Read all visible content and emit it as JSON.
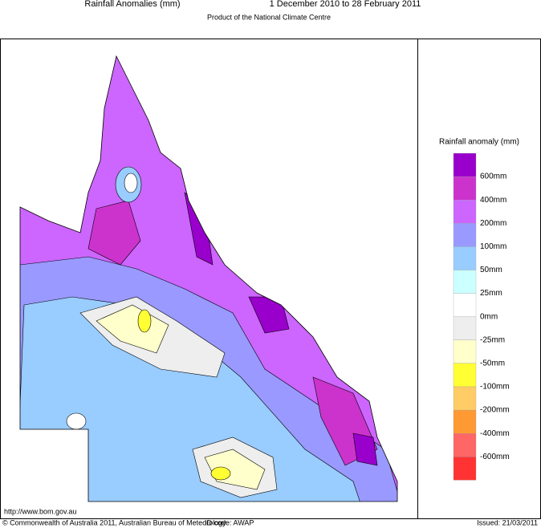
{
  "header": {
    "title": "Rainfall Anomalies (mm)",
    "period": "1 December 2010 to 28 February 2011",
    "subtitle": "Product of the National Climate Centre"
  },
  "legend": {
    "title": "Rainfall anomaly (mm)",
    "colors": [
      "#9900cc",
      "#cc33cc",
      "#cc66ff",
      "#9999ff",
      "#99ccff",
      "#ccffff",
      "#ffffff",
      "#eeeeee",
      "#ffffcc",
      "#ffff33",
      "#ffcc66",
      "#ff9933",
      "#ff6666",
      "#ff3333"
    ],
    "labels": [
      "600mm",
      "400mm",
      "200mm",
      "100mm",
      "50mm",
      "25mm",
      "0mm",
      "-25mm",
      "-50mm",
      "-100mm",
      "-200mm",
      "-400mm",
      "-600mm"
    ]
  },
  "footer": {
    "url": "http://www.bom.gov.au",
    "copyright": "© Commonwealth of Australia 2011, Australian Bureau of Meteorology",
    "id_code": "ID code: AWAP",
    "issued": "Issued: 21/03/2011"
  }
}
